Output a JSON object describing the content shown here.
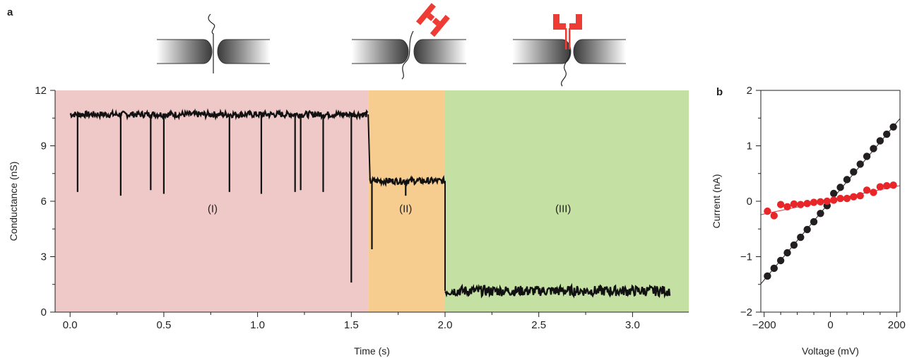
{
  "panels": {
    "a": "a",
    "b": "b"
  },
  "colors": {
    "region_I": "#efc8c8",
    "region_II": "#f6cc8f",
    "region_III": "#c4e0a2",
    "trace": "#111111",
    "series_black": "#231f20",
    "series_red": "#e8262a",
    "schematic_red": "#ee3b33"
  },
  "schematic_icons": [
    "pore-with-dna-strand-icon",
    "nanopore-with-red-molecule-icon",
    "nanopore-with-inserted-red-molecule-icon"
  ],
  "chart_data": [
    {
      "type": "line",
      "panel": "a",
      "xlabel": "Time (s)",
      "ylabel": "Conductance (nS)",
      "xlim": [
        -0.08,
        3.3
      ],
      "ylim": [
        0,
        12
      ],
      "xticks": [
        0.0,
        0.5,
        1.0,
        1.5,
        2.0,
        2.5,
        3.0
      ],
      "xtick_labels": [
        "0.0",
        "0.5",
        "1.0",
        "1.5",
        "2.0",
        "2.5",
        "3.0"
      ],
      "yticks": [
        0,
        3,
        6,
        9,
        12
      ],
      "ytick_labels": [
        "0",
        "3",
        "6",
        "9",
        "12"
      ],
      "grid": false,
      "regions": [
        {
          "label": "(I)",
          "x": [
            -0.08,
            1.59
          ],
          "label_x": 0.76,
          "label_y": 5.4
        },
        {
          "label": "(II)",
          "x": [
            1.59,
            2.0
          ],
          "label_x": 1.79,
          "label_y": 5.4
        },
        {
          "label": "(III)",
          "x": [
            2.0,
            3.3
          ],
          "label_x": 2.63,
          "label_y": 5.4
        }
      ],
      "baseline_segments": [
        {
          "x": [
            0.0,
            1.59
          ],
          "y": 10.7
        },
        {
          "x": [
            1.6,
            2.0
          ],
          "y": 7.1
        },
        {
          "x": [
            2.0,
            3.2
          ],
          "y": 1.15
        }
      ],
      "spikes": [
        {
          "x": 0.04,
          "y": 6.5
        },
        {
          "x": 0.27,
          "y": 6.3
        },
        {
          "x": 0.43,
          "y": 6.6
        },
        {
          "x": 0.5,
          "y": 6.4
        },
        {
          "x": 0.85,
          "y": 6.5
        },
        {
          "x": 1.02,
          "y": 6.4
        },
        {
          "x": 1.2,
          "y": 6.5
        },
        {
          "x": 1.23,
          "y": 6.6
        },
        {
          "x": 1.35,
          "y": 6.5
        },
        {
          "x": 1.5,
          "y": 1.6
        },
        {
          "x": 1.61,
          "y": 3.4
        },
        {
          "x": 1.79,
          "y": 6.3
        }
      ]
    },
    {
      "type": "scatter",
      "panel": "b",
      "xlabel": "Voltage (mV)",
      "ylabel": "Current (nA)",
      "xlim": [
        -210,
        210
      ],
      "ylim": [
        -2,
        2
      ],
      "xticks": [
        -200,
        0,
        200
      ],
      "xtick_labels": [
        "−200",
        "0",
        "200"
      ],
      "yticks": [
        -2,
        -1,
        0,
        1,
        2
      ],
      "ytick_labels": [
        "−2",
        "−1",
        "0",
        "1",
        "2"
      ],
      "grid": false,
      "series": [
        {
          "color_key": "series_black",
          "x": [
            -190,
            -170,
            -150,
            -130,
            -110,
            -90,
            -70,
            -50,
            -30,
            -10,
            10,
            30,
            50,
            70,
            90,
            110,
            130,
            150,
            170,
            190
          ],
          "y": [
            -1.35,
            -1.21,
            -1.07,
            -0.93,
            -0.79,
            -0.65,
            -0.51,
            -0.37,
            -0.22,
            -0.08,
            0.14,
            0.25,
            0.39,
            0.53,
            0.67,
            0.81,
            0.95,
            1.09,
            1.21,
            1.34
          ],
          "fit": {
            "slope": 0.0071,
            "intercept": 0.0
          }
        },
        {
          "color_key": "series_red",
          "x": [
            -190,
            -170,
            -150,
            -130,
            -110,
            -90,
            -70,
            -50,
            -30,
            -10,
            10,
            30,
            50,
            70,
            90,
            110,
            130,
            150,
            170,
            190
          ],
          "y": [
            -0.18,
            -0.26,
            -0.06,
            -0.1,
            -0.05,
            -0.06,
            -0.04,
            -0.02,
            -0.01,
            0.0,
            0.02,
            0.05,
            0.05,
            0.08,
            0.1,
            0.2,
            0.16,
            0.26,
            0.28,
            0.29
          ],
          "fit": {
            "slope": 0.00125,
            "intercept": 0.02
          }
        }
      ]
    }
  ]
}
